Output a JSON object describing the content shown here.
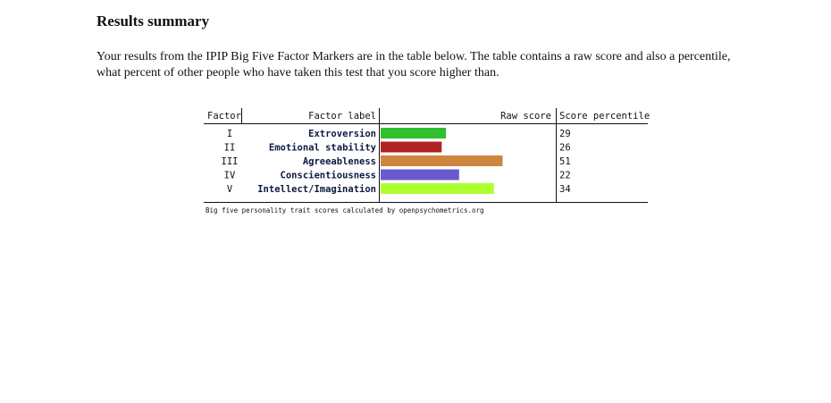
{
  "page": {
    "title": "Results summary",
    "intro": "Your results from the IPIP Big Five Factor Markers are in the table below. The table contains a raw score and also a percentile, what percent of other people who have taken this test that you score higher than."
  },
  "chart_data": {
    "type": "bar",
    "orientation": "horizontal",
    "headers": {
      "factor": "Factor",
      "label": "Factor label",
      "raw": "Raw score",
      "percentile": "Score percentile"
    },
    "numerals": [
      "I",
      "II",
      "III",
      "IV",
      "V"
    ],
    "categories": [
      "Extroversion",
      "Emotional stability",
      "Agreeableness",
      "Conscientiousness",
      "Intellect/Imagination"
    ],
    "values": [
      15,
      14,
      28,
      18,
      26
    ],
    "percentiles": [
      "29",
      "26",
      "51",
      "22",
      "34"
    ],
    "colors": [
      "#2fbf2f",
      "#b22222",
      "#cd853f",
      "#6a5acd",
      "#adff2f"
    ],
    "xlim": [
      0,
      40
    ],
    "caption": "Big five personality trait scores calculated by openpsychometrics.org"
  }
}
